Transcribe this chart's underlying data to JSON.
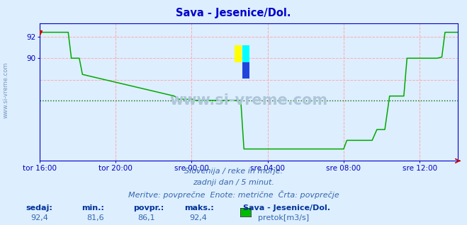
{
  "title": "Sava - Jesenice/Dol.",
  "title_color": "#0000cc",
  "bg_color": "#ddeeff",
  "plot_bg_color": "#ddeeff",
  "line_color": "#00aa00",
  "avg_line_color": "#006600",
  "grid_color": "#ffaaaa",
  "axis_color": "#0000cc",
  "tick_color": "#0000bb",
  "text_color": "#3366aa",
  "stat_label_color": "#003399",
  "ymin": 80.5,
  "ymax": 93.2,
  "ytick_vals": [
    90,
    92
  ],
  "ytick_labels": [
    "90",
    "92"
  ],
  "avg_value": 86.1,
  "xtick_labels": [
    "tor 16:00",
    "tor 20:00",
    "sre 00:00",
    "sre 04:00",
    "sre 08:00",
    "sre 12:00"
  ],
  "xtick_positions": [
    0,
    48,
    96,
    144,
    192,
    240
  ],
  "total_points": 265,
  "footer_line1": "Slovenija / reke in morje.",
  "footer_line2": "zadnji dan / 5 minut.",
  "footer_line3": "Meritve: povprečne  Enote: metrične  Črta: povprečje",
  "stat_sedaj": "92,4",
  "stat_min": "81,6",
  "stat_povpr": "86,1",
  "stat_maks": "92,4",
  "legend_title": "Sava - Jesenice/Dol.",
  "legend_label": "pretok[m3/s]",
  "legend_color": "#00bb00",
  "watermark_text": "www.si-vreme.com",
  "watermark_color": "#aec6d8",
  "sidebar_text": "www.si-vreme.com"
}
